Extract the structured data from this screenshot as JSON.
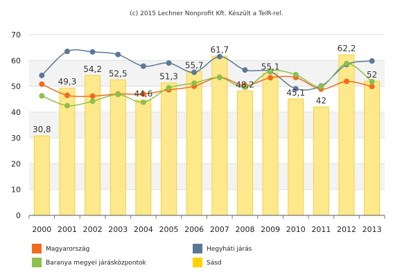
{
  "credit": "(c) 2015 Lechner Nonprofit Kft. Készült a TeIR-rel.",
  "colors": {
    "Magyarország": "#f26a1b",
    "Hegyháti járás": "#5d7896",
    "Baranya megyei járásközpontok": "#8dc04c",
    "Sásd": "#ffd200",
    "bar_fill": "#fde98c",
    "bar_stroke": "#f2d040"
  },
  "chart_data": {
    "type": "bar",
    "x": [
      "2000",
      "2001",
      "2002",
      "2003",
      "2004",
      "2005",
      "2006",
      "2007",
      "2008",
      "2009",
      "2010",
      "2011",
      "2012",
      "2013"
    ],
    "ylim": [
      0,
      70
    ],
    "yticks": [
      0,
      10,
      20,
      30,
      40,
      50,
      60,
      70
    ],
    "grid": true,
    "legend_position": "bottom",
    "bars": {
      "name": "Sásd",
      "values": [
        30.8,
        49.3,
        54.2,
        52.5,
        44.6,
        51.3,
        55.7,
        61.7,
        48.2,
        55.1,
        45.1,
        42,
        62.2,
        52
      ],
      "labels": [
        "30,8",
        "49,3",
        "54,2",
        "52,5",
        "44,6",
        "51,3",
        "55,7",
        "61,7",
        "48,2",
        "55,1",
        "45,1",
        "42",
        "62,2",
        "52"
      ]
    },
    "lines": [
      {
        "name": "Magyarország",
        "values": [
          50.8,
          46.5,
          46.2,
          47.0,
          47.0,
          48.6,
          50.0,
          53.5,
          50.3,
          53.3,
          53.4,
          48.9,
          51.9,
          49.9
        ]
      },
      {
        "name": "Hegyháti járás",
        "values": [
          54.2,
          63.5,
          63.3,
          62.3,
          57.8,
          59.0,
          55.4,
          61.5,
          56.3,
          55.7,
          49.0,
          50.1,
          58.4,
          59.8
        ]
      },
      {
        "name": "Baranya megyei járásközpontok",
        "values": [
          46.3,
          42.5,
          44.2,
          46.8,
          43.8,
          49.4,
          51.2,
          53.4,
          49.6,
          55.9,
          54.5,
          49.9,
          58.8,
          51.8
        ]
      }
    ],
    "legend": [
      "Magyarország",
      "Hegyháti járás",
      "Baranya megyei járásközpontok",
      "Sásd"
    ]
  }
}
